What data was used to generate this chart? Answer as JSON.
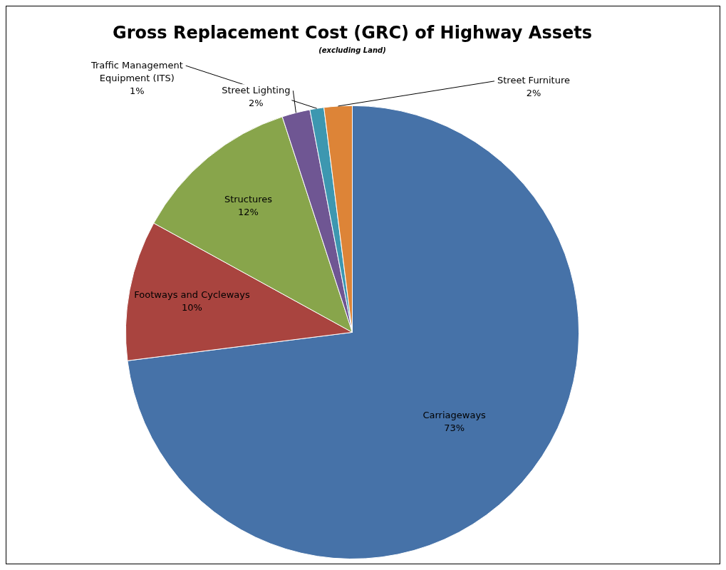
{
  "chart_data": {
    "type": "pie",
    "title": "Gross Replacement Cost (GRC) of Highway Assets",
    "subtitle": "(excluding Land)",
    "categories": [
      "Carriageways",
      "Footways and Cycleways",
      "Structures",
      "Street Lighting",
      "Traffic Management Equipment (ITS)",
      "Street Furniture"
    ],
    "values": [
      73,
      10,
      12,
      2,
      1,
      2
    ],
    "value_labels": [
      "73%",
      "10%",
      "12%",
      "2%",
      "1%",
      "2%"
    ],
    "colors": [
      "#4672a8",
      "#a9443f",
      "#88a54b",
      "#6f5693",
      "#3d97b0",
      "#dd8437"
    ],
    "legend": false
  }
}
